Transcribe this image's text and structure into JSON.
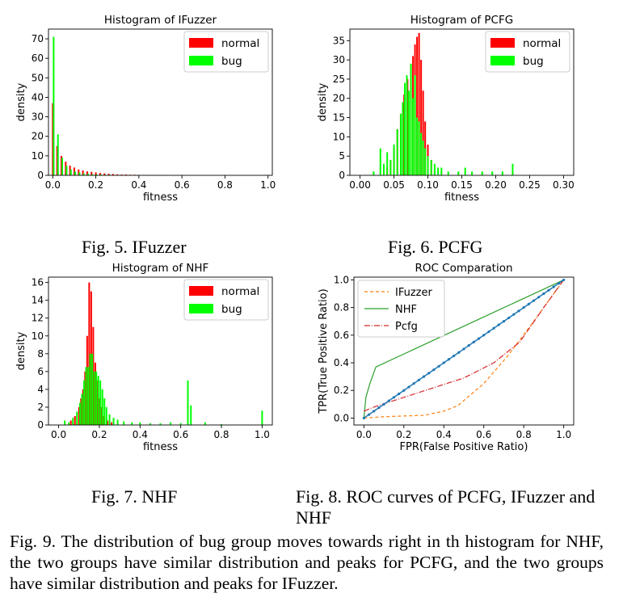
{
  "chart_data": [
    {
      "type": "bar",
      "title": "Histogram of IFuzzer",
      "xlabel": "fitness",
      "ylabel": "density",
      "xlim": [
        -0.02,
        1.02
      ],
      "ylim": [
        0,
        75
      ],
      "xticks": [
        "0.0",
        "0.2",
        "0.4",
        "0.6",
        "0.8",
        "1.0"
      ],
      "yticks": [
        "0",
        "10",
        "20",
        "30",
        "40",
        "50",
        "60",
        "70"
      ],
      "legend": "top-right",
      "series": [
        {
          "name": "normal",
          "color": "#ff0000",
          "x": [
            0.0,
            0.02,
            0.04,
            0.06,
            0.08,
            0.1,
            0.12,
            0.14,
            0.16,
            0.18,
            0.2,
            0.22,
            0.24,
            0.26,
            0.28,
            0.3,
            0.32,
            0.34,
            0.36,
            0.38,
            0.4,
            0.42,
            0.44,
            0.46,
            0.48,
            0.5
          ],
          "values": [
            37,
            15,
            10,
            7,
            5,
            4,
            3,
            2.5,
            2,
            1.8,
            1.5,
            1.2,
            1,
            0.8,
            0.7,
            0.5,
            0.4,
            0.4,
            0.3,
            0.3,
            0.2,
            0.2,
            0.2,
            0.1,
            0.1,
            0.1
          ]
        },
        {
          "name": "bug",
          "color": "#00ff00",
          "x": [
            0.004,
            0.024,
            0.044,
            0.064,
            0.084,
            0.104,
            0.124,
            0.144,
            0.164,
            0.184,
            0.204,
            0.224,
            0.244,
            0.264,
            0.304,
            0.344,
            0.404,
            0.604,
            1.0
          ],
          "values": [
            71,
            21,
            9,
            5,
            3,
            2,
            1.5,
            1,
            0.8,
            0.6,
            0.5,
            0.4,
            0.3,
            0.3,
            0.2,
            0.2,
            0.1,
            0.1,
            0.1
          ]
        }
      ]
    },
    {
      "type": "bar",
      "title": "Histogram of PCFG",
      "xlabel": "fitness",
      "ylabel": "density",
      "xlim": [
        -0.015,
        0.315
      ],
      "ylim": [
        0,
        38
      ],
      "xticks": [
        "0.00",
        "0.05",
        "0.10",
        "0.15",
        "0.20",
        "0.25",
        "0.30"
      ],
      "yticks": [
        "0",
        "5",
        "10",
        "15",
        "20",
        "25",
        "30",
        "35"
      ],
      "legend": "top-right",
      "series": [
        {
          "name": "normal",
          "color": "#ff0000",
          "x": [
            0.04,
            0.045,
            0.05,
            0.055,
            0.06,
            0.065,
            0.07,
            0.075,
            0.078,
            0.081,
            0.084,
            0.087,
            0.09,
            0.093,
            0.096,
            0.1,
            0.105,
            0.11
          ],
          "values": [
            2,
            4,
            7,
            12,
            16,
            21,
            25,
            29,
            31,
            34,
            36,
            37,
            30,
            22,
            14,
            8,
            4,
            1
          ]
        },
        {
          "name": "bug",
          "color": "#00ff00",
          "x": [
            0.02,
            0.03,
            0.035,
            0.04,
            0.045,
            0.05,
            0.055,
            0.06,
            0.063,
            0.066,
            0.069,
            0.072,
            0.075,
            0.078,
            0.081,
            0.084,
            0.087,
            0.09,
            0.093,
            0.096,
            0.1,
            0.105,
            0.11,
            0.115,
            0.12,
            0.13,
            0.145,
            0.155,
            0.165,
            0.18,
            0.195,
            0.21,
            0.225
          ],
          "values": [
            1,
            7,
            3,
            6,
            4,
            8,
            12,
            16,
            19,
            24,
            26,
            22,
            29,
            20,
            26,
            15,
            14,
            11,
            9,
            7,
            5,
            4,
            3,
            2,
            2,
            1,
            1,
            2,
            1,
            1,
            1,
            1,
            3
          ]
        }
      ]
    },
    {
      "type": "bar",
      "title": "Histogram of NHF",
      "xlabel": "fitness",
      "ylabel": "density",
      "xlim": [
        -0.05,
        1.05
      ],
      "ylim": [
        0,
        16.6
      ],
      "xticks": [
        "0.0",
        "0.2",
        "0.4",
        "0.6",
        "0.8",
        "1.0"
      ],
      "yticks": [
        "0",
        "2",
        "4",
        "6",
        "8",
        "10",
        "12",
        "14",
        "16"
      ],
      "legend": "top-right",
      "series": [
        {
          "name": "normal",
          "color": "#ff0000",
          "x": [
            0.06,
            0.08,
            0.1,
            0.11,
            0.12,
            0.13,
            0.14,
            0.15,
            0.16,
            0.17,
            0.18,
            0.19,
            0.2,
            0.21,
            0.22,
            0.24,
            0.26
          ],
          "values": [
            0.5,
            1,
            2,
            3,
            4,
            6,
            10,
            16,
            15,
            11,
            7,
            5,
            3,
            2,
            1,
            0.5,
            0.3
          ]
        },
        {
          "name": "bug",
          "color": "#00ff00",
          "x": [
            0.03,
            0.05,
            0.07,
            0.09,
            0.105,
            0.115,
            0.125,
            0.135,
            0.145,
            0.155,
            0.165,
            0.175,
            0.185,
            0.195,
            0.205,
            0.215,
            0.225,
            0.235,
            0.25,
            0.27,
            0.29,
            0.32,
            0.36,
            0.4,
            0.45,
            0.5,
            0.55,
            0.6,
            0.635,
            0.65,
            0.72,
            0.8,
            1.0
          ],
          "values": [
            0.5,
            0.3,
            0.8,
            1.5,
            2.5,
            3.5,
            5,
            6.5,
            6.5,
            8,
            8,
            6,
            6,
            5.5,
            5,
            4,
            3,
            2,
            1.2,
            0.8,
            0.6,
            0.4,
            0.3,
            0.3,
            0.2,
            0.2,
            0.3,
            0.2,
            5,
            2.2,
            0.3,
            0.1,
            1.6
          ]
        }
      ]
    },
    {
      "type": "line",
      "title": "ROC Comparation",
      "xlabel": "FPR(False Positive Ratio)",
      "ylabel": "TPR(True Positive Ratio)",
      "xlim": [
        -0.05,
        1.05
      ],
      "ylim": [
        -0.05,
        1.02
      ],
      "xticks": [
        "0.0",
        "0.2",
        "0.4",
        "0.6",
        "0.8",
        "1.0"
      ],
      "yticks": [
        "0.0",
        "0.2",
        "0.4",
        "0.6",
        "0.8",
        "1.0"
      ],
      "legend": "top-left",
      "series": [
        {
          "name": "IFuzzer",
          "color": "#ff7f0e",
          "dash": "4,3",
          "x": [
            0,
            0.1,
            0.3,
            0.4,
            0.47,
            0.6,
            0.72,
            0.85,
            0.95,
            1.0
          ],
          "y": [
            0,
            0.01,
            0.02,
            0.05,
            0.09,
            0.25,
            0.45,
            0.7,
            0.9,
            1.0
          ]
        },
        {
          "name": "NHF",
          "color": "#2ca02c",
          "dash": "",
          "x": [
            0,
            0.01,
            0.03,
            0.06,
            1.0
          ],
          "y": [
            0,
            0.15,
            0.25,
            0.37,
            1.0
          ]
        },
        {
          "name": "Pcfg",
          "color": "#d62728",
          "dash": "7,2,1,2",
          "x": [
            0,
            0.05,
            0.2,
            0.35,
            0.5,
            0.65,
            0.78,
            0.9,
            1.0
          ],
          "y": [
            0.05,
            0.08,
            0.15,
            0.22,
            0.29,
            0.4,
            0.55,
            0.8,
            1.0
          ]
        },
        {
          "name": "",
          "color": "#1f77b4",
          "dash": "",
          "markers": true,
          "x": [
            0,
            1
          ],
          "y": [
            0,
            1
          ]
        }
      ]
    }
  ],
  "captions": {
    "fig5": "Fig. 5.    IFuzzer",
    "fig6": "Fig. 6.    PCFG",
    "fig7": "Fig. 7.    NHF",
    "fig8": "Fig. 8.    ROC curves of PCFG, IFuzzer and NHF",
    "fig9": "Fig. 9.    The distribution of bug group moves towards right in th histogram for NHF, the two groups have similar distribution and peaks for PCFG, and the two groups have similar distribution and peaks for IFuzzer."
  }
}
